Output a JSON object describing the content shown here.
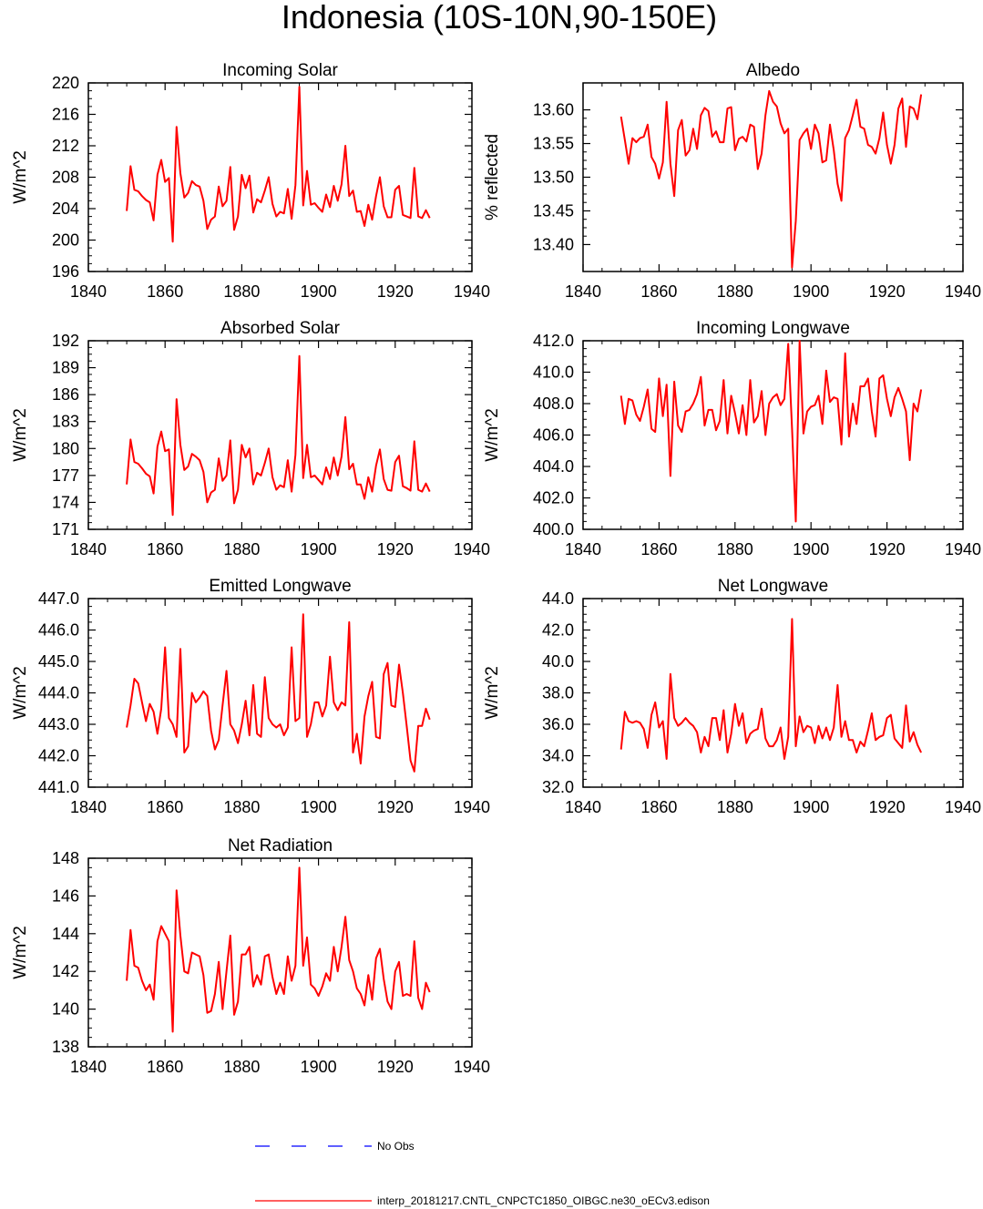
{
  "title": "Indonesia (10S-10N,90-150E)",
  "colors": {
    "model": "#ff0000",
    "obs": "#0000ff",
    "axis": "#000000"
  },
  "legend": [
    {
      "label": "No Obs",
      "color": "#0000ff",
      "style": "dashed"
    },
    {
      "label": "interp_20181217.CNTL_CNPCTC1850_OIBGC.ne30_oECv3.edison",
      "color": "#ff0000",
      "style": "solid"
    }
  ],
  "chart_data": [
    {
      "type": "line",
      "title": "Incoming Solar",
      "xlabel": "",
      "ylabel": "W/m^2",
      "xlim": [
        1840,
        1940
      ],
      "ylim": [
        196,
        220
      ],
      "xticks": [
        1840,
        1860,
        1880,
        1900,
        1920,
        1940
      ],
      "yticks": [
        196,
        200,
        204,
        208,
        212,
        216,
        220
      ],
      "ytick_decimals": 0,
      "x_start": 1850,
      "series": [
        {
          "values": [
            203.7,
            209.4,
            206.4,
            206.2,
            205.6,
            205.1,
            204.8,
            202.5,
            208.3,
            210.2,
            207.4,
            207.9,
            199.8,
            214.4,
            208.5,
            205.4,
            206.0,
            207.5,
            207.0,
            206.8,
            205.0,
            201.4,
            202.6,
            203.0,
            206.8,
            204.3,
            205.0,
            209.3,
            201.3,
            203.0,
            208.3,
            206.6,
            208.2,
            203.5,
            205.2,
            204.8,
            206.3,
            208.0,
            204.6,
            203.0,
            203.6,
            203.4,
            206.5,
            202.7,
            207.0,
            219.5,
            204.4,
            208.8,
            204.5,
            204.7,
            204.1,
            203.6,
            205.8,
            204.2,
            206.9,
            205.0,
            207.1,
            212.0,
            205.6,
            206.3,
            203.6,
            203.7,
            201.8,
            204.5,
            202.6,
            205.6,
            208.0,
            204.3,
            202.9,
            202.9,
            206.4,
            206.9,
            203.2,
            203.0,
            202.8,
            209.2,
            203.0,
            202.8,
            203.8,
            202.8
          ]
        }
      ]
    },
    {
      "type": "line",
      "title": "Albedo",
      "xlabel": "",
      "ylabel": "% reflected",
      "xlim": [
        1840,
        1940
      ],
      "ylim": [
        13.36,
        13.64
      ],
      "xticks": [
        1840,
        1860,
        1880,
        1900,
        1920,
        1940
      ],
      "yticks": [
        13.4,
        13.45,
        13.5,
        13.55,
        13.6
      ],
      "ytick_decimals": 2,
      "x_start": 1850,
      "series": [
        {
          "values": [
            13.59,
            13.555,
            13.52,
            13.558,
            13.552,
            13.558,
            13.56,
            13.578,
            13.53,
            13.52,
            13.498,
            13.522,
            13.612,
            13.52,
            13.472,
            13.57,
            13.585,
            13.532,
            13.54,
            13.572,
            13.542,
            13.592,
            13.603,
            13.598,
            13.56,
            13.568,
            13.552,
            13.552,
            13.602,
            13.604,
            13.54,
            13.557,
            13.56,
            13.553,
            13.578,
            13.575,
            13.512,
            13.535,
            13.592,
            13.628,
            13.612,
            13.605,
            13.58,
            13.565,
            13.572,
            13.366,
            13.435,
            13.555,
            13.565,
            13.572,
            13.542,
            13.578,
            13.565,
            13.522,
            13.525,
            13.578,
            13.54,
            13.49,
            13.465,
            13.558,
            13.57,
            13.592,
            13.615,
            13.575,
            13.572,
            13.548,
            13.545,
            13.535,
            13.558,
            13.596,
            13.548,
            13.52,
            13.548,
            13.602,
            13.617,
            13.545,
            13.605,
            13.602,
            13.586,
            13.623
          ]
        }
      ]
    },
    {
      "type": "line",
      "title": "Absorbed Solar",
      "xlabel": "",
      "ylabel": "W/m^2",
      "xlim": [
        1840,
        1940
      ],
      "ylim": [
        171,
        192
      ],
      "xticks": [
        1840,
        1860,
        1880,
        1900,
        1920,
        1940
      ],
      "yticks": [
        171,
        174,
        177,
        180,
        183,
        186,
        189,
        192
      ],
      "ytick_decimals": 0,
      "x_start": 1850,
      "series": [
        {
          "values": [
            176.0,
            181.0,
            178.5,
            178.3,
            177.8,
            177.2,
            176.9,
            175.0,
            180.2,
            181.9,
            179.7,
            179.9,
            172.6,
            185.5,
            180.4,
            177.6,
            178.0,
            179.4,
            179.1,
            178.7,
            177.4,
            174.0,
            175.1,
            175.4,
            178.9,
            176.4,
            177.0,
            180.9,
            173.9,
            175.4,
            180.4,
            179.0,
            180.0,
            176.0,
            177.3,
            177.0,
            178.4,
            180.0,
            176.8,
            175.4,
            175.9,
            175.7,
            178.7,
            175.2,
            179.3,
            190.3,
            176.7,
            180.4,
            176.8,
            177.0,
            176.5,
            176.0,
            177.9,
            176.6,
            179.0,
            177.0,
            179.1,
            183.5,
            177.7,
            178.3,
            176.0,
            176.0,
            174.4,
            176.8,
            175.2,
            178.1,
            179.9,
            176.6,
            175.4,
            175.3,
            178.5,
            179.2,
            175.8,
            175.6,
            175.3,
            180.8,
            175.4,
            175.2,
            176.1,
            175.2
          ]
        }
      ]
    },
    {
      "type": "line",
      "title": "Incoming Longwave",
      "xlabel": "",
      "ylabel": "W/m^2",
      "xlim": [
        1840,
        1940
      ],
      "ylim": [
        400,
        412
      ],
      "xticks": [
        1840,
        1860,
        1880,
        1900,
        1920,
        1940
      ],
      "yticks": [
        400.0,
        402.0,
        404.0,
        406.0,
        408.0,
        410.0,
        412.0
      ],
      "ytick_decimals": 1,
      "x_start": 1850,
      "series": [
        {
          "values": [
            408.5,
            406.7,
            408.3,
            408.2,
            407.3,
            406.9,
            407.8,
            408.9,
            406.4,
            406.2,
            409.6,
            407.2,
            409.2,
            403.4,
            409.4,
            406.6,
            406.2,
            407.5,
            407.6,
            408.0,
            408.6,
            409.7,
            406.6,
            407.6,
            407.6,
            406.3,
            406.9,
            409.5,
            406.1,
            408.5,
            407.4,
            406.1,
            407.9,
            406.0,
            409.5,
            406.8,
            407.2,
            408.8,
            406.0,
            408.0,
            408.4,
            408.6,
            407.9,
            408.3,
            411.8,
            406.4,
            400.5,
            412.0,
            406.1,
            407.5,
            407.8,
            407.9,
            408.5,
            406.7,
            410.1,
            408.1,
            408.4,
            408.3,
            405.4,
            411.2,
            405.9,
            408.0,
            406.7,
            409.1,
            409.1,
            409.6,
            407.5,
            405.9,
            409.6,
            409.8,
            408.3,
            407.2,
            408.4,
            409.0,
            408.3,
            407.5,
            404.4,
            408.0,
            407.5,
            408.9
          ]
        }
      ]
    },
    {
      "type": "line",
      "title": "Emitted Longwave",
      "xlabel": "",
      "ylabel": "W/m^2",
      "xlim": [
        1840,
        1940
      ],
      "ylim": [
        441,
        447
      ],
      "xticks": [
        1840,
        1860,
        1880,
        1900,
        1920,
        1940
      ],
      "yticks": [
        441.0,
        442.0,
        443.0,
        444.0,
        445.0,
        446.0,
        447.0
      ],
      "ytick_decimals": 1,
      "x_start": 1850,
      "series": [
        {
          "values": [
            442.9,
            443.6,
            444.45,
            444.3,
            443.7,
            443.1,
            443.65,
            443.4,
            442.7,
            443.5,
            445.45,
            443.2,
            443.0,
            442.6,
            445.4,
            442.1,
            442.3,
            444.0,
            443.7,
            443.85,
            444.05,
            443.9,
            442.8,
            442.2,
            442.5,
            443.6,
            444.7,
            443.0,
            442.8,
            442.4,
            443.0,
            443.75,
            442.65,
            444.25,
            442.7,
            442.6,
            444.5,
            443.2,
            443.0,
            442.9,
            443.0,
            442.65,
            442.9,
            445.45,
            443.1,
            443.2,
            446.5,
            442.6,
            443.0,
            443.7,
            443.7,
            443.25,
            443.6,
            445.15,
            443.7,
            443.45,
            443.7,
            443.6,
            446.25,
            442.1,
            442.7,
            441.75,
            443.25,
            443.9,
            444.35,
            442.6,
            442.55,
            444.6,
            444.95,
            443.6,
            443.55,
            444.9,
            444.0,
            442.95,
            441.85,
            441.5,
            442.95,
            442.95,
            443.5,
            443.15
          ]
        }
      ]
    },
    {
      "type": "line",
      "title": "Net Longwave",
      "xlabel": "",
      "ylabel": "W/m^2",
      "xlim": [
        1840,
        1940
      ],
      "ylim": [
        32,
        44
      ],
      "xticks": [
        1840,
        1860,
        1880,
        1900,
        1920,
        1940
      ],
      "yticks": [
        32.0,
        34.0,
        36.0,
        38.0,
        40.0,
        42.0,
        44.0
      ],
      "ytick_decimals": 1,
      "x_start": 1850,
      "series": [
        {
          "values": [
            34.4,
            36.8,
            36.2,
            36.1,
            36.2,
            36.1,
            35.7,
            34.5,
            36.6,
            37.4,
            35.8,
            36.2,
            33.8,
            39.2,
            36.4,
            35.9,
            36.1,
            36.4,
            36.1,
            35.9,
            35.5,
            34.2,
            35.2,
            34.6,
            36.4,
            36.4,
            35.0,
            36.9,
            34.2,
            35.4,
            37.3,
            35.9,
            36.7,
            34.8,
            35.4,
            35.6,
            35.7,
            37.0,
            35.1,
            34.6,
            34.6,
            35.0,
            35.8,
            33.8,
            35.2,
            42.7,
            34.6,
            36.5,
            35.5,
            35.9,
            35.8,
            34.8,
            35.9,
            35.1,
            35.8,
            35.0,
            35.8,
            38.5,
            35.2,
            36.2,
            35.0,
            35.0,
            34.2,
            34.9,
            34.6,
            35.6,
            36.7,
            35.0,
            35.2,
            35.3,
            36.4,
            36.6,
            35.1,
            34.8,
            34.5,
            37.2,
            34.9,
            35.5,
            34.7,
            34.2
          ]
        }
      ]
    },
    {
      "type": "line",
      "title": "Net Radiation",
      "xlabel": "",
      "ylabel": "W/m^2",
      "xlim": [
        1840,
        1940
      ],
      "ylim": [
        138,
        148
      ],
      "xticks": [
        1840,
        1860,
        1880,
        1900,
        1920,
        1940
      ],
      "yticks": [
        138,
        140,
        142,
        144,
        146,
        148
      ],
      "ytick_decimals": 0,
      "x_start": 1850,
      "series": [
        {
          "values": [
            141.5,
            144.2,
            142.3,
            142.2,
            141.5,
            141.0,
            141.3,
            140.5,
            143.6,
            144.4,
            144.0,
            143.6,
            138.8,
            146.3,
            143.9,
            142.0,
            141.9,
            143.0,
            142.9,
            142.8,
            141.8,
            139.8,
            139.9,
            140.8,
            142.5,
            140.0,
            142.0,
            143.9,
            139.7,
            140.4,
            142.9,
            142.9,
            143.3,
            141.2,
            141.8,
            141.3,
            142.8,
            142.9,
            141.7,
            140.8,
            141.4,
            140.8,
            142.8,
            141.5,
            142.3,
            147.5,
            142.3,
            143.8,
            141.3,
            141.1,
            140.7,
            141.2,
            141.9,
            141.5,
            143.3,
            142.0,
            143.3,
            144.9,
            142.6,
            142.0,
            141.1,
            140.8,
            140.2,
            141.8,
            140.5,
            142.7,
            143.2,
            141.6,
            140.4,
            140.0,
            142.0,
            142.5,
            140.7,
            140.8,
            140.7,
            143.6,
            140.6,
            140.0,
            141.4,
            140.9
          ]
        }
      ]
    }
  ]
}
